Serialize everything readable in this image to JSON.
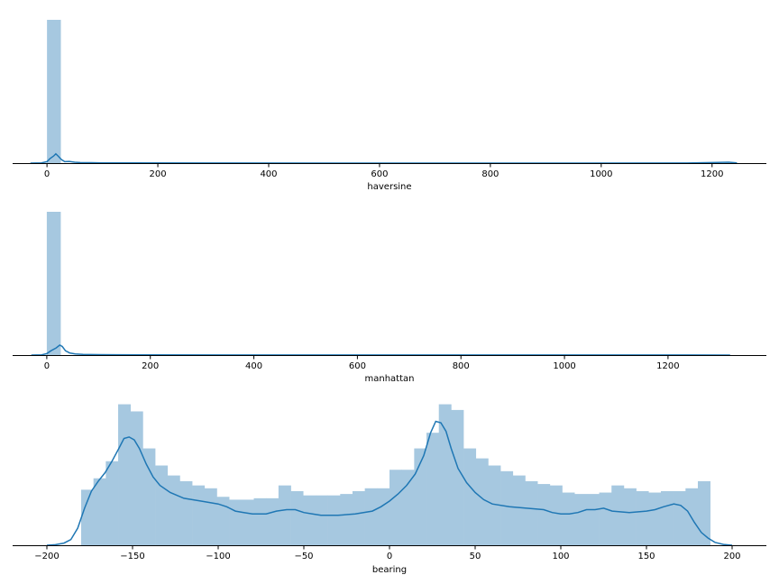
{
  "chart_data": [
    {
      "type": "histogram",
      "xlabel": "haversine",
      "ylabel": "",
      "title": "",
      "xlim": [
        -62,
        1298
      ],
      "xticks": [
        0,
        200,
        400,
        600,
        800,
        1000,
        1200
      ],
      "tick_labels": [
        "0",
        "200",
        "400",
        "600",
        "800",
        "1000",
        "1200"
      ],
      "bin_width": 24.6,
      "bins": [
        {
          "x0": 0,
          "x1": 24.6,
          "density": 1.0
        }
      ],
      "kde": [
        [
          -30,
          0
        ],
        [
          -10,
          0.002
        ],
        [
          0,
          0.01
        ],
        [
          5,
          0.03
        ],
        [
          12,
          0.05
        ],
        [
          16,
          0.065
        ],
        [
          20,
          0.05
        ],
        [
          26,
          0.025
        ],
        [
          32,
          0.01
        ],
        [
          40,
          0.012
        ],
        [
          50,
          0.006
        ],
        [
          60,
          0.004
        ],
        [
          80,
          0.003
        ],
        [
          100,
          0.002
        ],
        [
          150,
          0.001
        ],
        [
          300,
          0.0005
        ],
        [
          600,
          0.0003
        ],
        [
          900,
          0.0003
        ],
        [
          1150,
          0.0004
        ],
        [
          1200,
          0.004
        ],
        [
          1230,
          0.006
        ],
        [
          1245,
          0.002
        ]
      ],
      "grid": false,
      "legend": "none",
      "bar_color": "#a6c8e0",
      "kde_color": "#1f77b4"
    },
    {
      "type": "histogram",
      "xlabel": "manhattan",
      "ylabel": "",
      "title": "",
      "xlim": [
        -66,
        1390
      ],
      "xticks": [
        0,
        200,
        400,
        600,
        800,
        1000,
        1200
      ],
      "tick_labels": [
        "0",
        "200",
        "400",
        "600",
        "800",
        "1000",
        "1200"
      ],
      "bin_width": 26.5,
      "bins": [
        {
          "x0": 0,
          "x1": 26.5,
          "density": 1.0
        }
      ],
      "kde": [
        [
          -30,
          0
        ],
        [
          -10,
          0.002
        ],
        [
          0,
          0.01
        ],
        [
          8,
          0.03
        ],
        [
          18,
          0.05
        ],
        [
          25,
          0.07
        ],
        [
          30,
          0.06
        ],
        [
          36,
          0.03
        ],
        [
          44,
          0.015
        ],
        [
          55,
          0.008
        ],
        [
          70,
          0.005
        ],
        [
          100,
          0.003
        ],
        [
          200,
          0.001
        ],
        [
          500,
          0.0005
        ],
        [
          900,
          0.0004
        ],
        [
          1200,
          0.0004
        ],
        [
          1320,
          0.0003
        ]
      ],
      "grid": false,
      "legend": "none",
      "bar_color": "#a6c8e0",
      "kde_color": "#1f77b4"
    },
    {
      "type": "histogram",
      "xlabel": "bearing",
      "ylabel": "",
      "title": "",
      "xlim": [
        -220,
        220
      ],
      "xticks": [
        -200,
        -150,
        -100,
        -50,
        0,
        50,
        100,
        150,
        200
      ],
      "tick_labels": [
        "−200",
        "−150",
        "−100",
        "−50",
        "0",
        "50",
        "100",
        "150",
        "200"
      ],
      "bin_width": 7.2,
      "bins_start": -180,
      "bin_heights": [
        0.39,
        0.47,
        0.59,
        0.99,
        0.94,
        0.68,
        0.56,
        0.49,
        0.45,
        0.42,
        0.4,
        0.34,
        0.32,
        0.32,
        0.33,
        0.33,
        0.42,
        0.38,
        0.35,
        0.35,
        0.35,
        0.36,
        0.38,
        0.4,
        0.4,
        0.53,
        0.53,
        0.68,
        0.79,
        0.99,
        0.95,
        0.68,
        0.61,
        0.56,
        0.52,
        0.49,
        0.45,
        0.43,
        0.42,
        0.37,
        0.36,
        0.36,
        0.37,
        0.42,
        0.4,
        0.38,
        0.37,
        0.38,
        0.38,
        0.4,
        0.45
      ],
      "kde": [
        [
          -200,
          0
        ],
        [
          -195,
          0.004
        ],
        [
          -190,
          0.015
        ],
        [
          -186,
          0.04
        ],
        [
          -182,
          0.12
        ],
        [
          -178,
          0.26
        ],
        [
          -174,
          0.38
        ],
        [
          -170,
          0.45
        ],
        [
          -166,
          0.51
        ],
        [
          -162,
          0.59
        ],
        [
          -158,
          0.68
        ],
        [
          -155,
          0.75
        ],
        [
          -152,
          0.76
        ],
        [
          -149,
          0.74
        ],
        [
          -146,
          0.68
        ],
        [
          -142,
          0.57
        ],
        [
          -138,
          0.48
        ],
        [
          -134,
          0.42
        ],
        [
          -128,
          0.37
        ],
        [
          -120,
          0.33
        ],
        [
          -110,
          0.31
        ],
        [
          -100,
          0.29
        ],
        [
          -95,
          0.27
        ],
        [
          -90,
          0.24
        ],
        [
          -85,
          0.23
        ],
        [
          -80,
          0.22
        ],
        [
          -72,
          0.22
        ],
        [
          -66,
          0.24
        ],
        [
          -60,
          0.25
        ],
        [
          -55,
          0.25
        ],
        [
          -50,
          0.23
        ],
        [
          -45,
          0.22
        ],
        [
          -40,
          0.21
        ],
        [
          -35,
          0.21
        ],
        [
          -30,
          0.21
        ],
        [
          -20,
          0.22
        ],
        [
          -10,
          0.24
        ],
        [
          -5,
          0.27
        ],
        [
          0,
          0.31
        ],
        [
          5,
          0.36
        ],
        [
          10,
          0.42
        ],
        [
          15,
          0.5
        ],
        [
          20,
          0.63
        ],
        [
          24,
          0.79
        ],
        [
          27,
          0.87
        ],
        [
          30,
          0.86
        ],
        [
          33,
          0.8
        ],
        [
          36,
          0.68
        ],
        [
          40,
          0.54
        ],
        [
          45,
          0.44
        ],
        [
          50,
          0.37
        ],
        [
          55,
          0.32
        ],
        [
          60,
          0.29
        ],
        [
          70,
          0.27
        ],
        [
          80,
          0.26
        ],
        [
          90,
          0.25
        ],
        [
          95,
          0.23
        ],
        [
          100,
          0.22
        ],
        [
          105,
          0.22
        ],
        [
          110,
          0.23
        ],
        [
          115,
          0.25
        ],
        [
          120,
          0.25
        ],
        [
          125,
          0.26
        ],
        [
          130,
          0.24
        ],
        [
          140,
          0.23
        ],
        [
          150,
          0.24
        ],
        [
          155,
          0.25
        ],
        [
          160,
          0.27
        ],
        [
          166,
          0.29
        ],
        [
          170,
          0.28
        ],
        [
          174,
          0.24
        ],
        [
          178,
          0.16
        ],
        [
          182,
          0.09
        ],
        [
          186,
          0.05
        ],
        [
          190,
          0.02
        ],
        [
          195,
          0.006
        ],
        [
          200,
          0
        ]
      ],
      "grid": false,
      "legend": "none",
      "bar_color": "#a6c8e0",
      "kde_color": "#1f77b4"
    }
  ]
}
